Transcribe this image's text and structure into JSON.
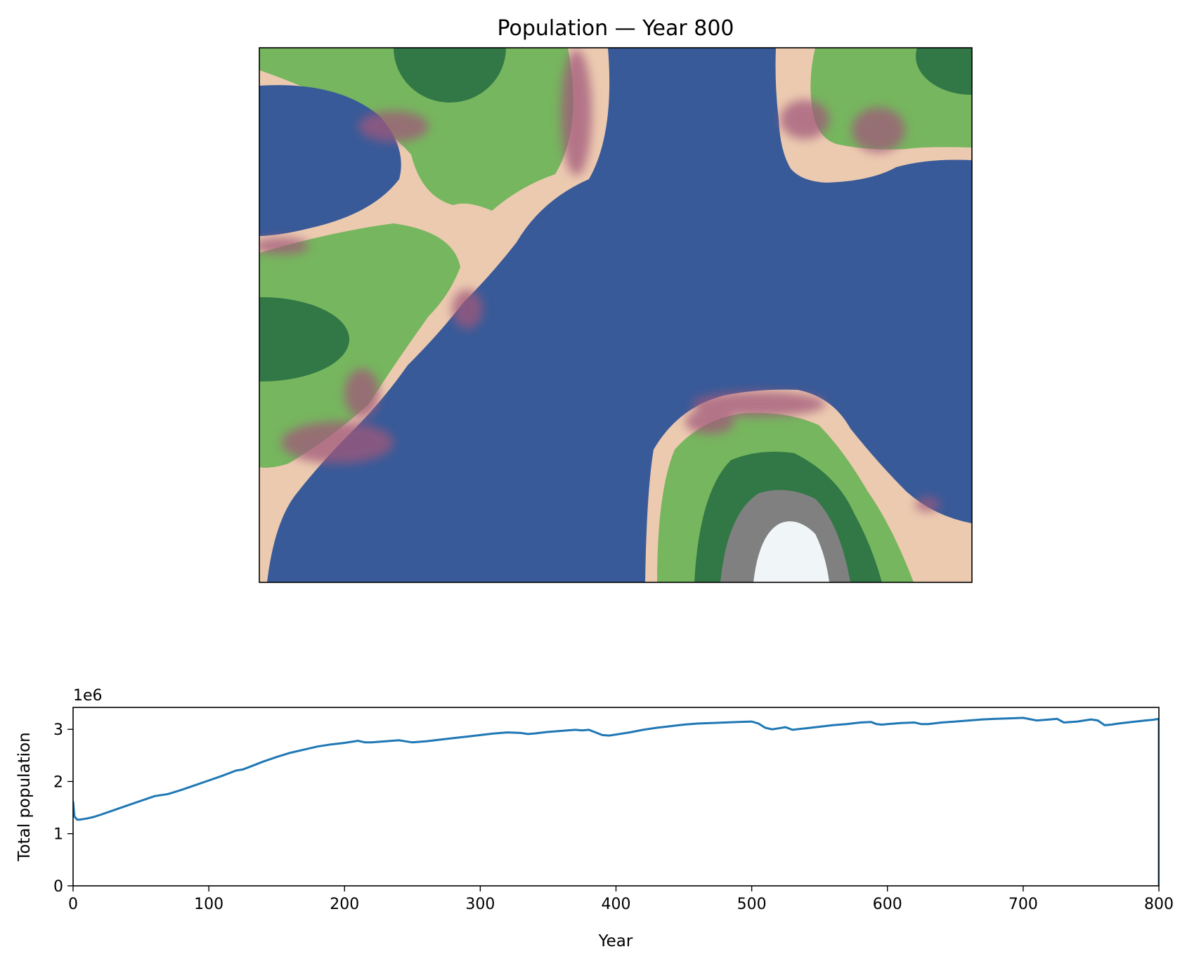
{
  "figure_title": "Population — Year 800",
  "colors": {
    "water": "#385a98",
    "beach": "#eccab0",
    "grass": "#76b65e",
    "forest": "#327847",
    "rock": "#808080",
    "snow": "#f0f5f8",
    "population": "#a0587a",
    "line": "#1f77b4"
  },
  "chart_data": [
    {
      "type": "heatmap",
      "title": "Population — Year 800",
      "axes": "off",
      "layers": [
        "water",
        "beach",
        "grass",
        "forest",
        "rock",
        "snow",
        "population overlay"
      ]
    },
    {
      "type": "line",
      "title": "",
      "xlabel": "Year",
      "ylabel": "Total population",
      "y_scale_label": "1e6",
      "xlim": [
        0,
        800
      ],
      "ylim": [
        0,
        3.42
      ],
      "xticks": [
        "0",
        "100",
        "200",
        "300",
        "400",
        "500",
        "600",
        "700",
        "800"
      ],
      "yticks": [
        "0",
        "1",
        "2",
        "3"
      ],
      "xtick_values": [
        0,
        100,
        200,
        300,
        400,
        500,
        600,
        700,
        800
      ],
      "ytick_values": [
        0,
        1,
        2,
        3
      ],
      "grid": false,
      "series": [
        {
          "x": [
            0,
            1,
            3,
            5,
            10,
            15,
            20,
            30,
            40,
            50,
            60,
            65,
            70,
            80,
            90,
            100,
            110,
            120,
            125,
            130,
            140,
            150,
            160,
            170,
            180,
            190,
            200,
            210,
            215,
            220,
            230,
            240,
            245,
            250,
            260,
            270,
            280,
            290,
            300,
            310,
            320,
            330,
            335,
            340,
            350,
            360,
            370,
            375,
            380,
            385,
            390,
            395,
            400,
            410,
            420,
            430,
            440,
            450,
            460,
            470,
            480,
            490,
            500,
            505,
            510,
            515,
            520,
            525,
            530,
            540,
            550,
            560,
            570,
            580,
            588,
            592,
            596,
            600,
            610,
            620,
            625,
            630,
            640,
            650,
            660,
            670,
            680,
            690,
            700,
            710,
            720,
            725,
            730,
            740,
            750,
            755,
            760,
            765,
            770,
            780,
            790,
            795,
            800
          ],
          "values": [
            1.62,
            1.33,
            1.27,
            1.27,
            1.29,
            1.32,
            1.36,
            1.45,
            1.54,
            1.63,
            1.72,
            1.74,
            1.76,
            1.84,
            1.93,
            2.02,
            2.11,
            2.21,
            2.23,
            2.28,
            2.38,
            2.47,
            2.55,
            2.61,
            2.67,
            2.71,
            2.74,
            2.78,
            2.75,
            2.75,
            2.77,
            2.79,
            2.77,
            2.75,
            2.77,
            2.8,
            2.83,
            2.86,
            2.89,
            2.92,
            2.94,
            2.93,
            2.91,
            2.92,
            2.95,
            2.97,
            2.99,
            2.98,
            2.99,
            2.94,
            2.89,
            2.88,
            2.9,
            2.94,
            2.99,
            3.03,
            3.06,
            3.09,
            3.11,
            3.12,
            3.13,
            3.14,
            3.15,
            3.11,
            3.03,
            3.0,
            3.02,
            3.04,
            2.99,
            3.02,
            3.05,
            3.08,
            3.1,
            3.13,
            3.14,
            3.1,
            3.09,
            3.1,
            3.12,
            3.13,
            3.1,
            3.1,
            3.13,
            3.15,
            3.17,
            3.19,
            3.2,
            3.21,
            3.22,
            3.17,
            3.19,
            3.2,
            3.13,
            3.15,
            3.19,
            3.17,
            3.08,
            3.09,
            3.11,
            3.14,
            3.17,
            3.18,
            3.2
          ]
        }
      ]
    }
  ]
}
